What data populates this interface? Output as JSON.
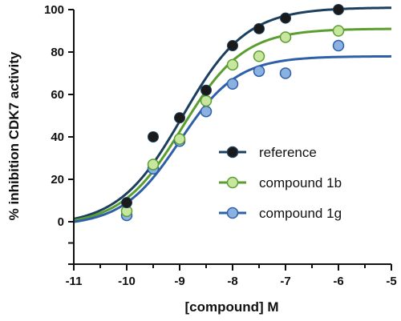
{
  "chart_data": {
    "type": "scatter",
    "xlabel": "[compound] M",
    "ylabel": "% inhibition CDK7 activity",
    "xlim": [
      -11,
      -5
    ],
    "ylim": [
      -20,
      100
    ],
    "x_ticks": [
      "-11",
      "-10",
      "-9",
      "-8",
      "-7",
      "-6",
      "-5"
    ],
    "y_ticks": [
      "0",
      "20",
      "40",
      "60",
      "80",
      "100"
    ],
    "legend_position": "right",
    "grid": false,
    "series": [
      {
        "name": "reference",
        "color": "#1a1a1a",
        "fit_color": "#1d3f5e",
        "x": [
          -10,
          -9.5,
          -9,
          -8.5,
          -8,
          -7.5,
          -7,
          -6
        ],
        "y": [
          9,
          40,
          49,
          62,
          83,
          91,
          96,
          100
        ],
        "fit": {
          "bottom": -2,
          "top": 101,
          "logEC50": -8.95,
          "hill": 0.72
        }
      },
      {
        "name": "compound 1b",
        "color": "#c8e6a0",
        "fit_color": "#5a9e2f",
        "x": [
          -10,
          -9.5,
          -9,
          -8.5,
          -8,
          -7.5,
          -7,
          -6
        ],
        "y": [
          5,
          27,
          39,
          57,
          74,
          78,
          87,
          90
        ],
        "fit": {
          "bottom": -2,
          "top": 91,
          "logEC50": -8.95,
          "hill": 0.75
        }
      },
      {
        "name": "compound 1g",
        "color": "#8bb1e0",
        "fit_color": "#2e5fa8",
        "x": [
          -10,
          -9.5,
          -9,
          -8.5,
          -8,
          -7.5,
          -7,
          -6
        ],
        "y": [
          3,
          25,
          38,
          52,
          65,
          71,
          70,
          83
        ],
        "fit": {
          "bottom": -2,
          "top": 78,
          "logEC50": -9.0,
          "hill": 0.8
        }
      }
    ]
  }
}
